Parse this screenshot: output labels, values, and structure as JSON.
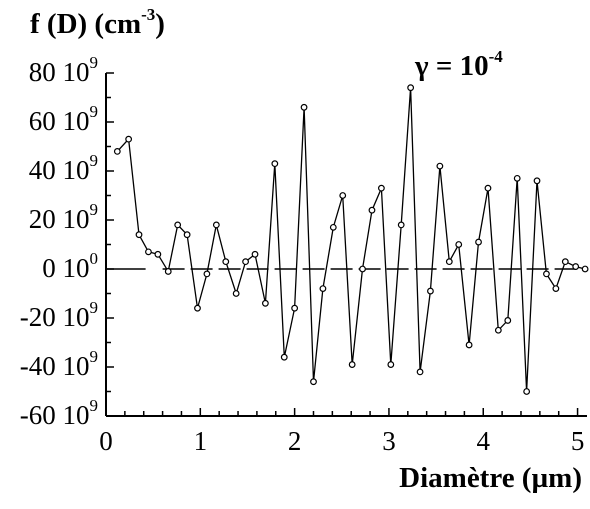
{
  "chart_data": {
    "type": "line",
    "ylabel_main": "f (D) (cm",
    "ylabel_exp": "-3",
    "ylabel_close": ")",
    "xlabel": "Diamètre (µm)",
    "annotation_main": "γ = 10",
    "annotation_exp": "-4",
    "xlim": [
      0,
      5.1
    ],
    "ylim": [
      -60000000000.0,
      80000000000.0
    ],
    "x_ticks": [
      "0",
      "1",
      "2",
      "3",
      "4",
      "5"
    ],
    "y_ticks": [
      {
        "mantissa": "80 10",
        "exp": "9"
      },
      {
        "mantissa": "60 10",
        "exp": "9"
      },
      {
        "mantissa": "40 10",
        "exp": "9"
      },
      {
        "mantissa": "20 10",
        "exp": "9"
      },
      {
        "mantissa": "0 10",
        "exp": "0"
      },
      {
        "mantissa": "-20 10",
        "exp": "9"
      },
      {
        "mantissa": "-40 10",
        "exp": "9"
      },
      {
        "mantissa": "-60 10",
        "exp": "9"
      }
    ],
    "grid": false,
    "zero_line": "dashed",
    "series": [
      {
        "x": [
          0.12,
          0.24,
          0.35,
          0.45,
          0.55,
          0.66,
          0.76,
          0.86,
          0.97,
          1.07,
          1.17,
          1.27,
          1.38,
          1.48,
          1.58,
          1.69,
          1.79,
          1.89,
          2.0,
          2.1,
          2.2,
          2.3,
          2.41,
          2.51,
          2.61,
          2.72,
          2.82,
          2.92,
          3.02,
          3.13,
          3.23,
          3.33,
          3.44,
          3.54,
          3.64,
          3.74,
          3.85,
          3.95,
          4.05,
          4.16,
          4.26,
          4.36,
          4.46,
          4.57,
          4.67,
          4.77,
          4.87,
          4.98,
          5.08
        ],
        "y": [
          48,
          53,
          14,
          7,
          6,
          -1,
          18,
          14,
          -16,
          -2,
          18,
          3,
          -10,
          3,
          6,
          -14,
          43,
          -36,
          -16,
          66,
          -46,
          -8,
          17,
          30,
          -39,
          0,
          24,
          33,
          -39,
          18,
          74,
          -42,
          -9,
          42,
          3,
          10,
          -31,
          11,
          33,
          -25,
          -21,
          37,
          -50,
          36,
          -2,
          -8,
          3,
          1,
          0
        ]
      }
    ]
  }
}
